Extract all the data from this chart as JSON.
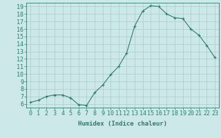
{
  "x": [
    0,
    1,
    2,
    3,
    4,
    5,
    6,
    7,
    8,
    9,
    10,
    11,
    12,
    13,
    14,
    15,
    16,
    17,
    18,
    19,
    20,
    21,
    22,
    23
  ],
  "y": [
    6.2,
    6.5,
    7.0,
    7.2,
    7.2,
    6.8,
    5.9,
    5.8,
    7.5,
    8.5,
    9.9,
    11.0,
    12.8,
    16.4,
    18.4,
    19.1,
    19.0,
    18.0,
    17.5,
    17.4,
    16.0,
    15.2,
    13.8,
    12.2
  ],
  "line_color": "#2d7b6b",
  "marker": "+",
  "marker_color": "#2d7b6b",
  "bg_color": "#cce8e8",
  "grid_color": "#aacccc",
  "xlabel": "Humidex (Indice chaleur)",
  "xlim": [
    -0.5,
    23.5
  ],
  "ylim": [
    5.5,
    19.5
  ],
  "yticks": [
    6,
    7,
    8,
    9,
    10,
    11,
    12,
    13,
    14,
    15,
    16,
    17,
    18,
    19
  ],
  "xticks": [
    0,
    1,
    2,
    3,
    4,
    5,
    6,
    7,
    8,
    9,
    10,
    11,
    12,
    13,
    14,
    15,
    16,
    17,
    18,
    19,
    20,
    21,
    22,
    23
  ],
  "tick_color": "#2d7b6b",
  "label_fontsize": 6.5,
  "tick_fontsize": 6.0
}
